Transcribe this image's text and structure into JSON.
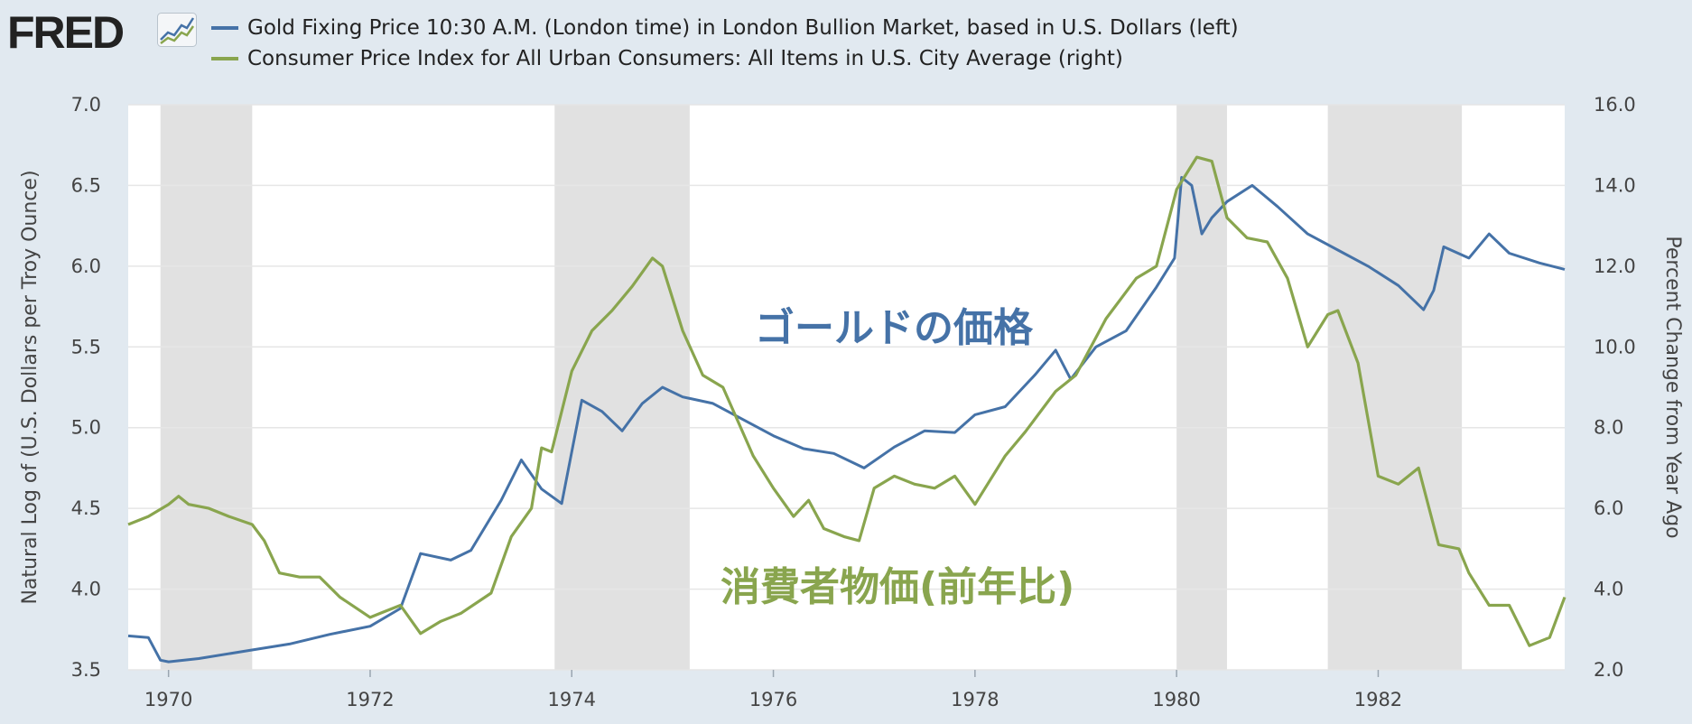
{
  "header": {
    "logo_text": "FRED",
    "logo_icon": "chart-trend-icon"
  },
  "legend": [
    {
      "label": "Gold Fixing Price 10:30 A.M. (London time) in London Bullion Market, based in U.S. Dollars (left)",
      "color": "#4572a7"
    },
    {
      "label": "Consumer Price Index for All Urban Consumers: All Items in U.S. City Average (right)",
      "color": "#89a54e"
    }
  ],
  "annotations": {
    "gold": "ゴールドの価格",
    "cpi": "消費者物価(前年比)"
  },
  "chart_data": {
    "type": "line",
    "xlim": [
      1969.6,
      1983.85
    ],
    "x_ticks": [
      1970,
      1972,
      1974,
      1976,
      1978,
      1980,
      1982
    ],
    "left_axis": {
      "label": "Natural Log of (U.S. Dollars per Troy Ounce)",
      "ylim": [
        3.5,
        7.0
      ],
      "ticks": [
        "3.5",
        "4.0",
        "4.5",
        "5.0",
        "5.5",
        "6.0",
        "6.5",
        "7.0"
      ]
    },
    "right_axis": {
      "label": "Percent Change from Year Ago",
      "ylim": [
        2.0,
        16.0
      ],
      "ticks": [
        "2.0",
        "4.0",
        "6.0",
        "8.0",
        "10.0",
        "12.0",
        "14.0",
        "16.0"
      ]
    },
    "grid": true,
    "recessions": [
      [
        1969.92,
        1970.83
      ],
      [
        1973.83,
        1975.17
      ],
      [
        1980.0,
        1980.5
      ],
      [
        1981.5,
        1982.83
      ]
    ],
    "recession_color": "#e1e1e1",
    "series": [
      {
        "name": "Gold Fixing Price 10:30 A.M. (London time) in London Bullion Market, based in U.S. Dollars (left)",
        "axis": "left",
        "color": "#4572a7",
        "x": [
          1969.6,
          1969.8,
          1969.92,
          1970.0,
          1970.3,
          1970.8,
          1971.2,
          1971.6,
          1972.0,
          1972.3,
          1972.5,
          1972.8,
          1973.0,
          1973.3,
          1973.5,
          1973.7,
          1973.9,
          1974.1,
          1974.3,
          1974.5,
          1974.7,
          1974.9,
          1975.1,
          1975.4,
          1975.7,
          1976.0,
          1976.3,
          1976.6,
          1976.9,
          1977.2,
          1977.5,
          1977.8,
          1978.0,
          1978.3,
          1978.6,
          1978.8,
          1978.95,
          1979.2,
          1979.5,
          1979.8,
          1979.98,
          1980.05,
          1980.15,
          1980.25,
          1980.35,
          1980.5,
          1980.75,
          1981.0,
          1981.3,
          1981.6,
          1981.9,
          1982.2,
          1982.45,
          1982.55,
          1982.65,
          1982.9,
          1983.1,
          1983.3,
          1983.6,
          1983.85
        ],
        "y": [
          3.71,
          3.7,
          3.56,
          3.55,
          3.57,
          3.62,
          3.66,
          3.72,
          3.77,
          3.88,
          4.22,
          4.18,
          4.24,
          4.55,
          4.8,
          4.62,
          4.53,
          5.17,
          5.1,
          4.98,
          5.15,
          5.25,
          5.19,
          5.15,
          5.05,
          4.95,
          4.87,
          4.84,
          4.75,
          4.88,
          4.98,
          4.97,
          5.08,
          5.13,
          5.33,
          5.48,
          5.3,
          5.5,
          5.6,
          5.87,
          6.05,
          6.55,
          6.5,
          6.2,
          6.3,
          6.4,
          6.5,
          6.37,
          6.2,
          6.1,
          6.0,
          5.88,
          5.73,
          5.85,
          6.12,
          6.05,
          6.2,
          6.08,
          6.02,
          5.98
        ]
      },
      {
        "name": "Consumer Price Index for All Urban Consumers: All Items in U.S. City Average (right)",
        "axis": "right",
        "color": "#89a54e",
        "x": [
          1969.6,
          1969.8,
          1970.0,
          1970.1,
          1970.2,
          1970.4,
          1970.6,
          1970.83,
          1970.95,
          1971.1,
          1971.3,
          1971.5,
          1971.7,
          1972.0,
          1972.1,
          1972.3,
          1972.5,
          1972.7,
          1972.9,
          1973.2,
          1973.4,
          1973.6,
          1973.7,
          1973.8,
          1974.0,
          1974.2,
          1974.4,
          1974.6,
          1974.8,
          1974.9,
          1975.1,
          1975.3,
          1975.5,
          1975.8,
          1976.0,
          1976.2,
          1976.35,
          1976.5,
          1976.7,
          1976.85,
          1977.0,
          1977.2,
          1977.4,
          1977.6,
          1977.8,
          1978.0,
          1978.3,
          1978.5,
          1978.8,
          1979.0,
          1979.3,
          1979.6,
          1979.8,
          1980.0,
          1980.2,
          1980.35,
          1980.5,
          1980.7,
          1980.9,
          1981.1,
          1981.3,
          1981.5,
          1981.6,
          1981.8,
          1982.0,
          1982.2,
          1982.4,
          1982.6,
          1982.8,
          1982.9,
          1983.1,
          1983.3,
          1983.5,
          1983.7,
          1983.85
        ],
        "y": [
          5.6,
          5.8,
          6.1,
          6.3,
          6.1,
          6.0,
          5.8,
          5.6,
          5.2,
          4.4,
          4.3,
          4.3,
          3.8,
          3.3,
          3.4,
          3.6,
          2.9,
          3.2,
          3.4,
          3.9,
          5.3,
          6.0,
          7.5,
          7.4,
          9.4,
          10.4,
          10.9,
          11.5,
          12.2,
          12.0,
          10.4,
          9.3,
          9.0,
          7.3,
          6.5,
          5.8,
          6.2,
          5.5,
          5.3,
          5.2,
          6.5,
          6.8,
          6.6,
          6.5,
          6.8,
          6.1,
          7.3,
          7.9,
          8.9,
          9.3,
          10.7,
          11.7,
          12.0,
          13.9,
          14.7,
          14.6,
          13.2,
          12.7,
          12.6,
          11.7,
          10.0,
          10.8,
          10.9,
          9.6,
          6.8,
          6.6,
          7.0,
          5.1,
          5.0,
          4.4,
          3.6,
          3.6,
          2.6,
          2.8,
          3.8
        ]
      }
    ]
  }
}
